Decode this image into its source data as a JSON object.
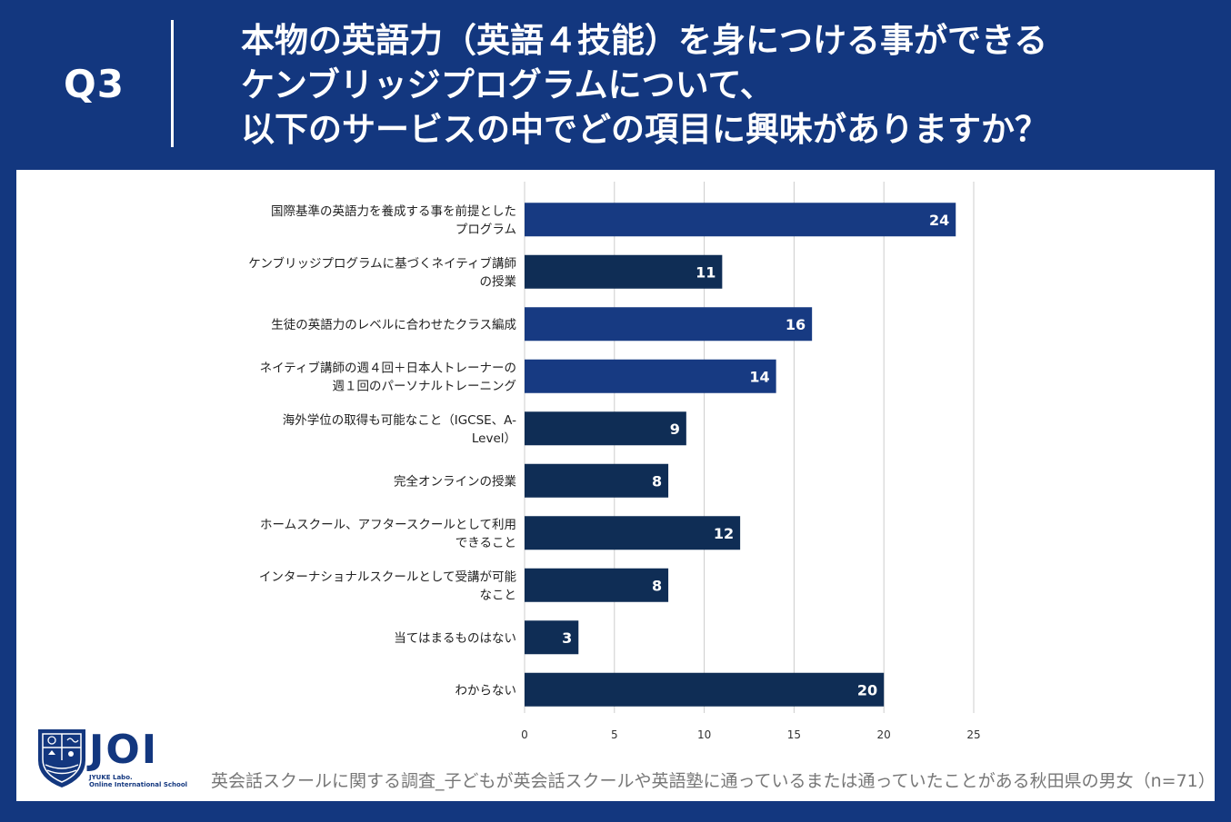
{
  "header": {
    "question": "Q3",
    "title_lines": [
      "本物の英語力（英語４技能）を身につける事ができる",
      "ケンブリッジプログラムについて、",
      "以下のサービスの中でどの項目に興味がありますか？"
    ]
  },
  "colors": {
    "background": "#13377f",
    "bar_primary": "#173a82",
    "bar_secondary": "#0f2d55",
    "grid": "#cccccc"
  },
  "chart_data": {
    "type": "bar",
    "orientation": "horizontal",
    "categories": [
      [
        "国際基準の英語力を養成する事を前提とした",
        "プログラム"
      ],
      [
        "ケンブリッジプログラムに基づくネイティブ講師",
        "の授業"
      ],
      [
        "生徒の英語力のレベルに合わせたクラス編成"
      ],
      [
        "ネイティブ講師の週４回＋日本人トレーナーの",
        "週１回のパーソナルトレーニング"
      ],
      [
        "海外学位の取得も可能なこと（IGCSE、A-",
        "Level）"
      ],
      [
        "完全オンラインの授業"
      ],
      [
        "ホームスクール、アフタースクールとして利用",
        "できること"
      ],
      [
        "インターナショナルスクールとして受講が可能",
        "なこと"
      ],
      [
        "当てはまるものはない"
      ],
      [
        "わからない"
      ]
    ],
    "values": [
      24,
      11,
      16,
      14,
      9,
      8,
      12,
      8,
      3,
      20
    ],
    "bar_colors": [
      "#173a82",
      "#0f2d55",
      "#173a82",
      "#173a82",
      "#0f2d55",
      "#0f2d55",
      "#0f2d55",
      "#0f2d55",
      "#0f2d55",
      "#0f2d55"
    ],
    "xlim": [
      0,
      25
    ],
    "xticks": [
      0,
      5,
      10,
      15,
      20,
      25
    ],
    "grid": true,
    "legend": "none"
  },
  "logo": {
    "text": "JOI",
    "sub1": "JYUKE Labo.",
    "sub2": "Online International School"
  },
  "footer": {
    "note": "英会話スクールに関する調査_子どもが英会話スクールや英語塾に通っているまたは通っていたことがある秋田県の男女（n=71）"
  }
}
